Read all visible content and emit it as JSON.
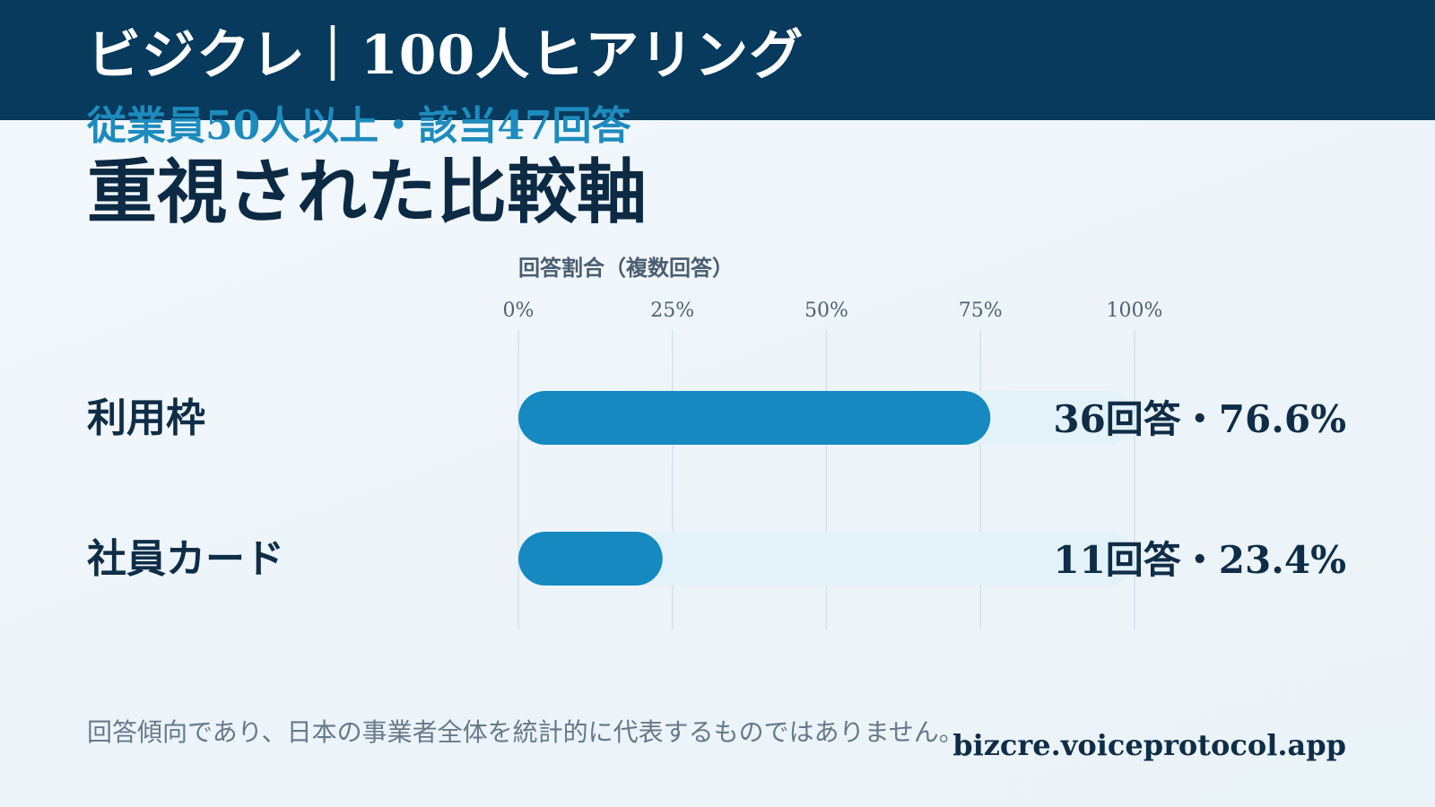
{
  "header": {
    "brand": "ビジクレ｜100人ヒアリング",
    "subtitle": "従業員50人以上・該当47回答",
    "title": "重視された比較軸"
  },
  "colors": {
    "header_bg": "#073a5c",
    "accent": "#1589c0",
    "bar_track": "#e3f1f8",
    "text_dark": "#0f2d47"
  },
  "chart_data": {
    "type": "bar",
    "orientation": "horizontal",
    "axis_title": "回答割合（複数回答）",
    "ticks": [
      "0%",
      "25%",
      "50%",
      "75%",
      "100%"
    ],
    "xlim": [
      0,
      100
    ],
    "grid": true,
    "categories": [
      "利用枠",
      "社員カード"
    ],
    "counts": [
      36,
      11
    ],
    "values": [
      76.6,
      23.4
    ],
    "data_labels": [
      "36回答・76.6%",
      "11回答・23.4%"
    ]
  },
  "footer": {
    "note": "回答傾向であり、日本の事業者全体を統計的に代表するものではありません。",
    "site": "bizcre.voiceprotocol.app"
  }
}
